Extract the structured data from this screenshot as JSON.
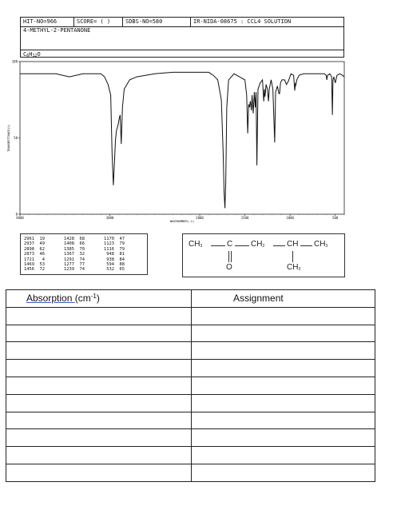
{
  "header": {
    "hit_no": "HIT-NO=966",
    "score": "SCORE=  (  )",
    "sdbs_no": "SDBS-NO=580",
    "ir_info": "IR-NIDA-08675 : CCL4 SOLUTION",
    "compound_name": "4-METHYL-2-PENTANONE",
    "formula_main": "C",
    "formula_sub1": "6",
    "formula_h": "H",
    "formula_sub2": "12",
    "formula_o": "O"
  },
  "chart_data": {
    "type": "line",
    "title": "",
    "xlabel": "WAVENUMBER(-1)",
    "ylabel": "TRANSMITTANCE(%)",
    "x_axis": {
      "range": [
        4000,
        400
      ],
      "reversed": true,
      "segments": [
        {
          "from": 4000,
          "to": 2000
        },
        {
          "from": 2000,
          "to": 400
        }
      ],
      "tick_labels": [
        "4000",
        "3000",
        "2000",
        "1500",
        "1000",
        "500"
      ],
      "tick_values": [
        4000,
        3000,
        2000,
        1500,
        1000,
        500
      ]
    },
    "y_axis": {
      "range": [
        0,
        100
      ],
      "tick_labels": [
        "100",
        "50",
        "0"
      ],
      "tick_values": [
        100,
        50,
        0
      ]
    },
    "grid": false,
    "series": [
      {
        "values": [
          [
            4000,
            92
          ],
          [
            3800,
            92
          ],
          [
            3600,
            92
          ],
          [
            3450,
            90
          ],
          [
            3300,
            92
          ],
          [
            3100,
            92
          ],
          [
            3060,
            90
          ],
          [
            3020,
            85
          ],
          [
            2990,
            78
          ],
          [
            2975,
            40
          ],
          [
            2961,
            19
          ],
          [
            2950,
            32
          ],
          [
            2937,
            49
          ],
          [
            2925,
            55
          ],
          [
            2910,
            58
          ],
          [
            2898,
            62
          ],
          [
            2885,
            65
          ],
          [
            2873,
            46
          ],
          [
            2860,
            70
          ],
          [
            2840,
            82
          ],
          [
            2780,
            88
          ],
          [
            2700,
            90
          ],
          [
            2500,
            92
          ],
          [
            2300,
            93
          ],
          [
            2100,
            93
          ],
          [
            2000,
            93
          ],
          [
            1900,
            93
          ],
          [
            1850,
            91
          ],
          [
            1800,
            88
          ],
          [
            1760,
            75
          ],
          [
            1740,
            40
          ],
          [
            1730,
            15
          ],
          [
            1721,
            4
          ],
          [
            1712,
            20
          ],
          [
            1700,
            70
          ],
          [
            1680,
            88
          ],
          [
            1620,
            92
          ],
          [
            1560,
            90
          ],
          [
            1500,
            88
          ],
          [
            1480,
            78
          ],
          [
            1469,
            53
          ],
          [
            1458,
            72
          ],
          [
            1450,
            70
          ],
          [
            1440,
            74
          ],
          [
            1428,
            68
          ],
          [
            1420,
            78
          ],
          [
            1408,
            66
          ],
          [
            1395,
            80
          ],
          [
            1385,
            70
          ],
          [
            1376,
            80
          ],
          [
            1367,
            32
          ],
          [
            1355,
            82
          ],
          [
            1330,
            86
          ],
          [
            1305,
            88
          ],
          [
            1291,
            74
          ],
          [
            1283,
            82
          ],
          [
            1277,
            77
          ],
          [
            1265,
            85
          ],
          [
            1250,
            82
          ],
          [
            1239,
            74
          ],
          [
            1230,
            82
          ],
          [
            1210,
            88
          ],
          [
            1190,
            82
          ],
          [
            1170,
            47
          ],
          [
            1160,
            80
          ],
          [
            1150,
            82
          ],
          [
            1140,
            84
          ],
          [
            1123,
            79
          ],
          [
            1116,
            79
          ],
          [
            1105,
            86
          ],
          [
            1090,
            88
          ],
          [
            1060,
            88
          ],
          [
            1040,
            85
          ],
          [
            1020,
            87
          ],
          [
            990,
            92
          ],
          [
            960,
            91
          ],
          [
            948,
            81
          ],
          [
            940,
            86
          ],
          [
            938,
            84
          ],
          [
            925,
            88
          ],
          [
            900,
            91
          ],
          [
            850,
            92
          ],
          [
            800,
            92
          ],
          [
            700,
            92
          ],
          [
            620,
            92
          ],
          [
            600,
            91
          ],
          [
            594,
            88
          ],
          [
            585,
            91
          ],
          [
            560,
            92
          ],
          [
            540,
            90
          ],
          [
            532,
            65
          ],
          [
            525,
            88
          ],
          [
            515,
            90
          ],
          [
            500,
            86
          ],
          [
            480,
            91
          ],
          [
            450,
            92
          ],
          [
            420,
            91
          ],
          [
            400,
            90
          ]
        ]
      }
    ]
  },
  "peak_table": {
    "columns": [
      [
        [
          "2961",
          "19"
        ],
        [
          "2937",
          "49"
        ],
        [
          "2898",
          "62"
        ],
        [
          "2873",
          "46"
        ],
        [
          "1721",
          "4"
        ],
        [
          "1469",
          "53"
        ],
        [
          "1456",
          "72"
        ]
      ],
      [
        [
          "1428",
          "68"
        ],
        [
          "1408",
          "66"
        ],
        [
          "1385",
          "70"
        ],
        [
          "1367",
          "32"
        ],
        [
          "1291",
          "74"
        ],
        [
          "1277",
          "77"
        ],
        [
          "1239",
          "74"
        ]
      ],
      [
        [
          "1170",
          "47"
        ],
        [
          "1123",
          "79"
        ],
        [
          "1116",
          "79"
        ],
        [
          "948",
          "81"
        ],
        [
          "938",
          "84"
        ],
        [
          "594",
          "88"
        ],
        [
          "532",
          "65"
        ]
      ]
    ]
  },
  "structure": {
    "ch3_left": "CH",
    "ch3_left_sub": "3",
    "carbon": "C",
    "ch2": "CH",
    "ch2_sub": "2",
    "ch": "CH",
    "ch3_right": "CH",
    "ch3_right_sub": "3",
    "oxygen": "O",
    "ch3_bottom": "CH",
    "ch3_bottom_sub": "3"
  },
  "assignment_table": {
    "col1_header": "Absorption ",
    "col1_unit_open": "(cm",
    "col1_unit_sup": "-1",
    "col1_unit_close": ")",
    "col2_header": "Assignment"
  }
}
